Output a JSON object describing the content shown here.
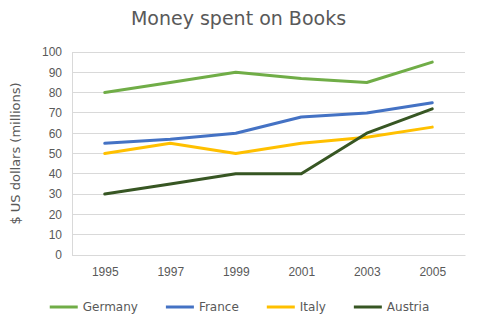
{
  "chart_data": {
    "type": "line",
    "title": "Money spent on Books",
    "y_label": "$ US dollars (millions)",
    "categories": [
      "1995",
      "1997",
      "1999",
      "2001",
      "2003",
      "2005"
    ],
    "series": [
      {
        "name": "Germany",
        "color": "#70ad47",
        "values": [
          80,
          85,
          90,
          87,
          85,
          95
        ]
      },
      {
        "name": "France",
        "color": "#4472c4",
        "values": [
          55,
          57,
          60,
          68,
          70,
          75
        ]
      },
      {
        "name": "Italy",
        "color": "#ffc000",
        "values": [
          50,
          55,
          50,
          55,
          58,
          63
        ]
      },
      {
        "name": "Austria",
        "color": "#375623",
        "values": [
          30,
          35,
          40,
          40,
          60,
          72
        ]
      }
    ],
    "ylim": [
      0,
      100
    ],
    "yticks": [
      0,
      10,
      20,
      30,
      40,
      50,
      60,
      70,
      80,
      90,
      100
    ],
    "grid": true,
    "legend": "bottom"
  }
}
